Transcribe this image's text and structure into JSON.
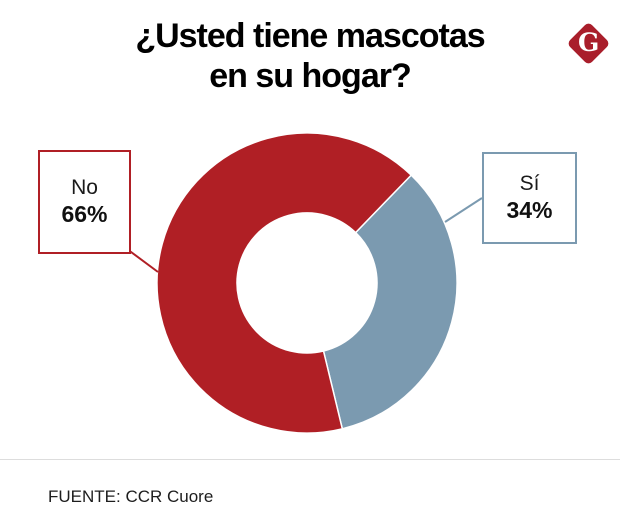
{
  "title": {
    "line1": "¿Usted tiene mascotas",
    "line2": "en su hogar?"
  },
  "logo": {
    "name": "gestion-logo",
    "letter": "G",
    "color": "#A91E2B"
  },
  "source": {
    "label": "FUENTE: CCR Cuore"
  },
  "chart_data": {
    "type": "pie",
    "subtype": "donut",
    "title": "¿Usted tiene mascotas en su hogar?",
    "categories": [
      "Sí",
      "No"
    ],
    "values": [
      34,
      66
    ],
    "unit": "%",
    "value_labels": [
      "34%",
      "66%"
    ],
    "colors": [
      "#7B9AB0",
      "#B01F25"
    ],
    "start_angle_deg": 44,
    "donut_hole_ratio": 0.467,
    "slice_border_color": "#ffffff",
    "legend_position": "callout-boxes",
    "background": "#ffffff"
  }
}
